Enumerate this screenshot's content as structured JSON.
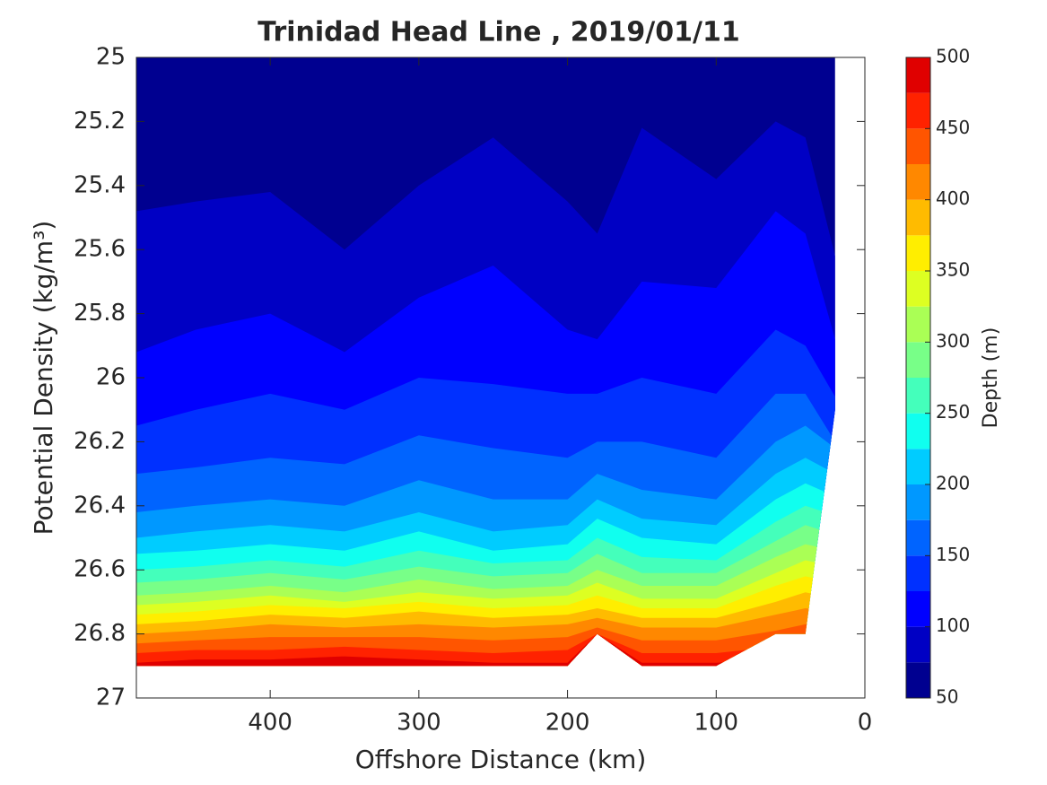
{
  "chart_data": {
    "type": "contourf",
    "title": "Trinidad Head Line , 2019/01/11",
    "xlabel": "Offshore Distance (km)",
    "ylabel": "Potential Density (kg/m³)",
    "xlim": [
      490,
      0
    ],
    "ylim": [
      27,
      25
    ],
    "xticks": [
      400,
      300,
      200,
      100,
      0
    ],
    "yticks": [
      25,
      25.2,
      25.4,
      25.6,
      25.8,
      26,
      26.2,
      26.4,
      26.6,
      26.8,
      27
    ],
    "x": [
      490,
      450,
      400,
      350,
      300,
      250,
      200,
      180,
      150,
      100,
      60,
      40,
      20
    ],
    "contours": [
      [
        25.48,
        25.45,
        25.42,
        25.6,
        25.4,
        25.25,
        25.45,
        25.55,
        25.22,
        25.38,
        25.2,
        25.25,
        25.62
      ],
      [
        25.92,
        25.85,
        25.8,
        25.92,
        25.75,
        25.65,
        25.85,
        25.88,
        25.7,
        25.72,
        25.48,
        25.55,
        25.88
      ],
      [
        26.15,
        26.1,
        26.05,
        26.1,
        26.0,
        26.02,
        26.05,
        26.05,
        26.0,
        26.05,
        25.85,
        25.9,
        26.06
      ],
      [
        26.3,
        26.28,
        26.25,
        26.27,
        26.18,
        26.22,
        26.25,
        26.2,
        26.2,
        26.25,
        26.05,
        26.05,
        26.2
      ],
      [
        26.42,
        26.4,
        26.38,
        26.4,
        26.32,
        26.38,
        26.38,
        26.3,
        26.35,
        26.38,
        26.2,
        26.15,
        26.22
      ],
      [
        26.5,
        26.48,
        26.46,
        26.48,
        26.42,
        26.48,
        26.46,
        26.38,
        26.44,
        26.46,
        26.3,
        26.25,
        26.3
      ],
      [
        26.55,
        26.54,
        26.52,
        26.54,
        26.48,
        26.54,
        26.52,
        26.44,
        26.5,
        26.52,
        26.38,
        26.33,
        26.37
      ],
      [
        26.6,
        26.59,
        26.57,
        26.59,
        26.54,
        26.58,
        26.57,
        26.5,
        26.56,
        26.57,
        26.45,
        26.4,
        26.43
      ],
      [
        26.64,
        26.63,
        26.61,
        26.63,
        26.59,
        26.62,
        26.61,
        26.55,
        26.61,
        26.61,
        26.51,
        26.46,
        26.49
      ],
      [
        26.68,
        26.67,
        26.65,
        26.67,
        26.63,
        26.66,
        26.65,
        26.6,
        26.65,
        26.65,
        26.56,
        26.52,
        26.54
      ],
      [
        26.71,
        26.7,
        26.68,
        26.7,
        26.67,
        26.69,
        26.68,
        26.64,
        26.69,
        26.69,
        26.61,
        26.57,
        26.59
      ],
      [
        26.74,
        26.73,
        26.71,
        26.72,
        26.7,
        26.72,
        26.71,
        26.68,
        26.72,
        26.72,
        26.65,
        26.62,
        26.64
      ],
      [
        26.77,
        26.76,
        26.74,
        26.75,
        26.73,
        26.75,
        26.74,
        26.72,
        26.75,
        26.75,
        26.7,
        26.67,
        26.69
      ],
      [
        26.8,
        26.79,
        26.77,
        26.78,
        26.77,
        26.78,
        26.77,
        26.75,
        26.78,
        26.78,
        26.74,
        26.72,
        26.73
      ],
      [
        26.83,
        26.82,
        26.81,
        26.81,
        26.81,
        26.82,
        26.81,
        26.78,
        26.82,
        26.82,
        26.79,
        26.77,
        26.77
      ],
      [
        26.86,
        26.85,
        26.85,
        26.84,
        26.85,
        26.86,
        26.85,
        26.8,
        26.86,
        26.86,
        26.84,
        26.82,
        26.8
      ],
      [
        26.89,
        26.88,
        26.88,
        26.87,
        26.88,
        26.89,
        26.89,
        26.8,
        26.89,
        26.89,
        26.88,
        26.86,
        26.83
      ]
    ],
    "data_limit": [
      26.9,
      26.9,
      26.9,
      26.9,
      26.9,
      26.9,
      26.9,
      26.8,
      26.9,
      26.9,
      26.8,
      26.8,
      26.1
    ],
    "colorbar": {
      "label": "Depth (m)",
      "levels": [
        50,
        75,
        100,
        125,
        150,
        175,
        200,
        225,
        250,
        275,
        300,
        325,
        350,
        375,
        400,
        425,
        450,
        475,
        500
      ],
      "colors": [
        "#000090",
        "#0000c4",
        "#0000ff",
        "#0030ff",
        "#0064ff",
        "#0098ff",
        "#00ccff",
        "#10ffef",
        "#44ffbb",
        "#78ff88",
        "#aaff55",
        "#ddff22",
        "#ffee00",
        "#ffbb00",
        "#ff8800",
        "#ff5500",
        "#ff2200",
        "#e00000",
        "#a00000"
      ],
      "ticks": [
        50,
        100,
        150,
        200,
        250,
        300,
        350,
        400,
        450,
        500
      ]
    }
  }
}
